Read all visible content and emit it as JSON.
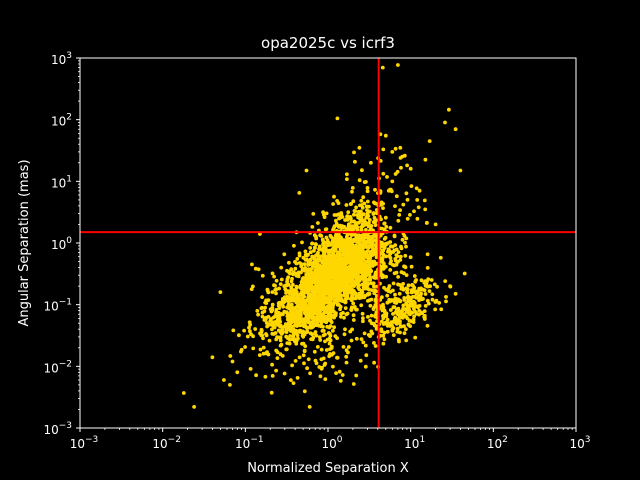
{
  "chart_data": {
    "type": "scatter",
    "title": "opa2025c vs icrf3",
    "xlabel": "Normalized Separation X",
    "ylabel": "Angular Separation (mas)",
    "xscale": "log",
    "yscale": "log",
    "xlim": [
      0.001,
      1000
    ],
    "ylim": [
      0.001,
      1000
    ],
    "x_ticks": [
      {
        "value": 0.001,
        "base": "10",
        "exp": "−3"
      },
      {
        "value": 0.01,
        "base": "10",
        "exp": "−2"
      },
      {
        "value": 0.1,
        "base": "10",
        "exp": "−1"
      },
      {
        "value": 1,
        "base": "10",
        "exp": "0"
      },
      {
        "value": 10,
        "base": "10",
        "exp": "1"
      },
      {
        "value": 100,
        "base": "10",
        "exp": "2"
      },
      {
        "value": 1000,
        "base": "10",
        "exp": "3"
      }
    ],
    "y_ticks": [
      {
        "value": 0.001,
        "base": "10",
        "exp": "−3"
      },
      {
        "value": 0.01,
        "base": "10",
        "exp": "−2"
      },
      {
        "value": 0.1,
        "base": "10",
        "exp": "−1"
      },
      {
        "value": 1,
        "base": "10",
        "exp": "0"
      },
      {
        "value": 10,
        "base": "10",
        "exp": "1"
      },
      {
        "value": 100,
        "base": "10",
        "exp": "2"
      },
      {
        "value": 1000,
        "base": "10",
        "exp": "3"
      }
    ],
    "threshold_lines": {
      "vertical_x": 4.1,
      "horizontal_y": 1.5,
      "color": "#ff0000"
    },
    "background": "#000000",
    "foreground": "#ffffff",
    "point_color": "#ffd700",
    "grid": false,
    "legend": "none",
    "series": [
      {
        "clusters": [
          {
            "cx": 1.4,
            "cy": 0.35,
            "sx": 0.3,
            "sy": 0.32,
            "n": 1400,
            "rho": 0.35
          },
          {
            "cx": 0.6,
            "cy": 0.08,
            "sx": 0.22,
            "sy": 0.25,
            "n": 500,
            "rho": 0.4
          },
          {
            "cx": 1.8,
            "cy": 0.9,
            "sx": 0.22,
            "sy": 0.35,
            "n": 350,
            "rho": 0.3
          },
          {
            "cx": 8.0,
            "cy": 0.09,
            "sx": 0.22,
            "sy": 0.25,
            "n": 280,
            "rho": 0.5
          },
          {
            "cx": 0.25,
            "cy": 0.05,
            "sx": 0.25,
            "sy": 0.35,
            "n": 150,
            "rho": 0.5
          },
          {
            "cx": 3.0,
            "cy": 3.0,
            "sx": 0.3,
            "sy": 0.45,
            "n": 120,
            "rho": 0.3
          },
          {
            "cx": 1.0,
            "cy": 0.015,
            "sx": 0.3,
            "sy": 0.25,
            "n": 90,
            "rho": 0.3
          }
        ],
        "points": [
          [
            0.018,
            0.0037
          ],
          [
            0.024,
            0.0022
          ],
          [
            0.05,
            0.16
          ],
          [
            0.04,
            0.014
          ],
          [
            0.055,
            0.006
          ],
          [
            0.065,
            0.005
          ],
          [
            0.07,
            0.012
          ],
          [
            0.08,
            0.008
          ],
          [
            4.6,
            700
          ],
          [
            7.0,
            770
          ],
          [
            1.3,
            105
          ],
          [
            4.3,
            58
          ],
          [
            5.0,
            55
          ],
          [
            6.0,
            30
          ],
          [
            7.5,
            35
          ],
          [
            8.5,
            26
          ],
          [
            10.0,
            16
          ],
          [
            17.0,
            45
          ],
          [
            26.0,
            90
          ],
          [
            29.0,
            145
          ],
          [
            35.0,
            70
          ],
          [
            40.0,
            15
          ],
          [
            2.4,
            35
          ],
          [
            3.3,
            20
          ],
          [
            0.6,
            0.0022
          ],
          [
            0.45,
            6.5
          ],
          [
            0.55,
            15
          ],
          [
            0.15,
            1.4
          ],
          [
            0.12,
            0.45
          ],
          [
            45.0,
            0.32
          ],
          [
            30.0,
            0.2
          ],
          [
            35.0,
            0.15
          ],
          [
            20.0,
            2.0
          ],
          [
            15.0,
            3.5
          ],
          [
            12.0,
            5.0
          ]
        ]
      }
    ]
  }
}
